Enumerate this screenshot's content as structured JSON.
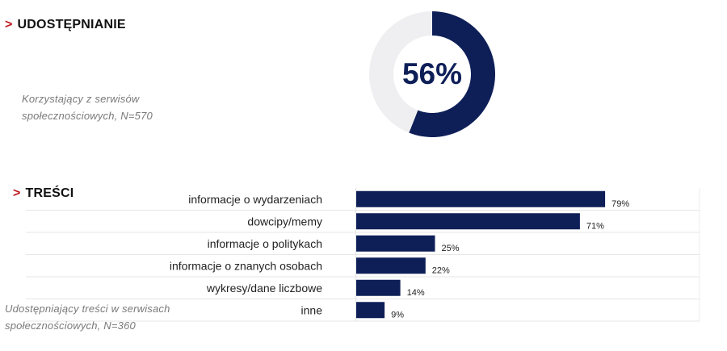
{
  "udostepnianie": {
    "chevron": ">",
    "title": "UDOSTĘPNIANIE",
    "note_line1": "Korzystający z serwisów",
    "note_line2": "społecznościowych,  N=570",
    "percent_label": "56%"
  },
  "tresci": {
    "chevron": ">",
    "title": "TREŚCI",
    "note_line1": "Udostępniający treści  w serwisach",
    "note_line2": "społecznościowych,  N=360"
  },
  "colors": {
    "accent": "#0e1f58",
    "donut_rest": "#efeff1",
    "chevron": "#c0161c"
  },
  "chart_data": [
    {
      "type": "pie",
      "categories": [
        "",
        ""
      ],
      "values": [
        56,
        44
      ],
      "donut": true,
      "center_label": "56%"
    },
    {
      "type": "bar",
      "orientation": "horizontal",
      "categories": [
        "informacje  o wydarzeniach",
        "dowcipy/memy",
        "informacje  o politykach",
        "informacje  o znanych osobach",
        "wykresy/dane  liczbowe",
        "inne"
      ],
      "values": [
        79,
        71,
        25,
        22,
        14,
        9
      ],
      "value_labels": [
        "79%",
        "71%",
        "25%",
        "22%",
        "14%",
        "9%"
      ],
      "unit": "%",
      "xlim": [
        0,
        100
      ]
    }
  ]
}
